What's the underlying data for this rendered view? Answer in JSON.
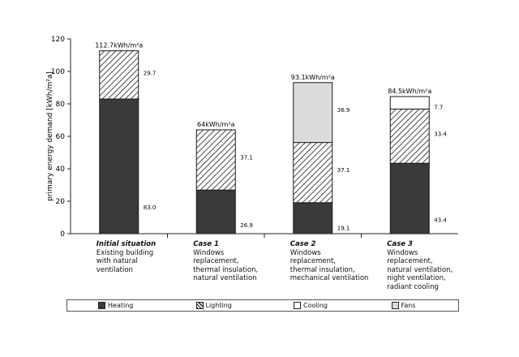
{
  "chart_data": {
    "type": "bar",
    "stacked": true,
    "ylabel": "primary energy demand [kWh/m²a]",
    "xlabel": "",
    "ylim": [
      0,
      120
    ],
    "yticks": [
      0,
      20,
      40,
      60,
      80,
      100,
      120
    ],
    "categories": [
      {
        "title": "Initial situation",
        "lines": [
          "Existing building",
          "with natural",
          "ventilation"
        ]
      },
      {
        "title": "Case 1",
        "lines": [
          "Windows",
          "replacement,",
          "thermal insulation,",
          "natural ventilation"
        ]
      },
      {
        "title": "Case 2",
        "lines": [
          "Windows",
          "replacement,",
          "thermal insulation,",
          "mechanical ventilation"
        ]
      },
      {
        "title": "Case 3",
        "lines": [
          "Windows",
          "replacement,",
          "natural ventilation,",
          "night ventilation,",
          "radiant cooling"
        ]
      }
    ],
    "series": [
      {
        "name": "Heating",
        "values": [
          83.0,
          26.9,
          19.1,
          43.4
        ],
        "labels": [
          "83.0",
          "26.9",
          "19.1",
          "43.4"
        ],
        "fill": "#3a3a3a"
      },
      {
        "name": "Lighting",
        "values": [
          29.7,
          37.1,
          37.1,
          33.4
        ],
        "labels": [
          "29.7",
          "37.1",
          "37.1",
          "33.4"
        ],
        "fill": "hatch"
      },
      {
        "name": "Cooling",
        "values": [
          0,
          0,
          0,
          7.7
        ],
        "labels": [
          "",
          "",
          "",
          "7.7"
        ],
        "fill": "#ffffff"
      },
      {
        "name": "Fans",
        "values": [
          0,
          0,
          36.9,
          0
        ],
        "labels": [
          "",
          "",
          "36.9",
          ""
        ],
        "fill": "#dcdcdc"
      }
    ],
    "totals": [
      "112.7kWh/m²a",
      "64kWh/m²a",
      "93.1kWh/m²a",
      "84.5kWh/m²a"
    ],
    "grid": false,
    "legend_position": "bottom"
  }
}
